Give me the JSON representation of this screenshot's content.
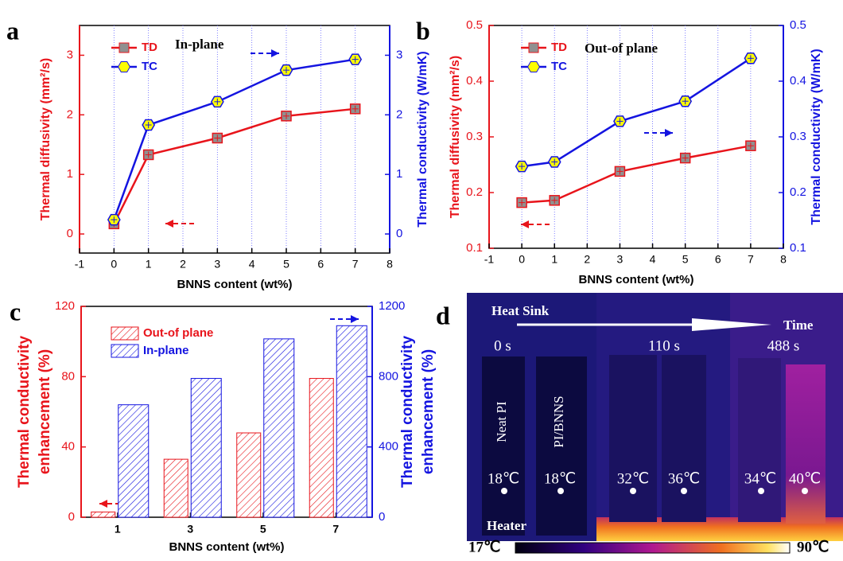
{
  "chart_data": [
    {
      "type": "line",
      "label": "a",
      "annotation": "In-plane",
      "xlabel": "BNNS content (wt%)",
      "ylabel": "Thermal diffusivity (mm²/s)",
      "y2label": "Thermal conductivity (W/mK)",
      "x": [
        0,
        1,
        3,
        5,
        7
      ],
      "xlim": [
        -1,
        8
      ],
      "xticks": [
        -1,
        0,
        1,
        2,
        3,
        4,
        5,
        6,
        7,
        8
      ],
      "ylim": [
        -0.32,
        3.5
      ],
      "yticks": [
        0,
        1,
        2,
        3
      ],
      "y2lim": [
        -0.32,
        3.5
      ],
      "y2ticks": [
        0,
        1,
        2,
        3
      ],
      "grid": true,
      "legend": "upper left",
      "series": [
        {
          "name": "TD",
          "color": "#e8141b",
          "values": [
            0.17,
            1.33,
            1.61,
            1.98,
            2.1
          ]
        },
        {
          "name": "TC",
          "color": "#1414e0",
          "axis": "y2",
          "values": [
            0.24,
            1.83,
            2.22,
            2.75,
            2.93
          ]
        }
      ]
    },
    {
      "type": "line",
      "label": "b",
      "annotation": "Out-of plane",
      "xlabel": "BNNS content (wt%)",
      "ylabel": "Thermal diffusivity (mm²/s)",
      "y2label": "Thermal conductivity (W/mK)",
      "x": [
        0,
        1,
        3,
        5,
        7
      ],
      "xlim": [
        -1,
        8
      ],
      "xticks": [
        -1,
        0,
        1,
        2,
        3,
        4,
        5,
        6,
        7,
        8
      ],
      "ylim": [
        0.1,
        0.5
      ],
      "yticks": [
        0.1,
        0.2,
        0.3,
        0.4,
        0.5
      ],
      "y2lim": [
        0.1,
        0.5
      ],
      "y2ticks": [
        0.1,
        0.2,
        0.3,
        0.4,
        0.5
      ],
      "grid": true,
      "legend": "upper left",
      "series": [
        {
          "name": "TD",
          "color": "#e8141b",
          "values": [
            0.182,
            0.186,
            0.238,
            0.262,
            0.284
          ]
        },
        {
          "name": "TC",
          "color": "#1414e0",
          "axis": "y2",
          "values": [
            0.247,
            0.255,
            0.328,
            0.364,
            0.441
          ]
        }
      ]
    },
    {
      "type": "bar",
      "label": "c",
      "xlabel": "BNNS content (wt%)",
      "ylabel": [
        "Thermal conductivity",
        "enhancement  (%)"
      ],
      "y2label": [
        "Thermal conductivity",
        "enhancement  (%)"
      ],
      "categories": [
        "1",
        "3",
        "5",
        "7"
      ],
      "ylim": [
        0,
        120
      ],
      "yticks": [
        0,
        40,
        80,
        120
      ],
      "y2lim": [
        0,
        1200
      ],
      "y2ticks": [
        0,
        400,
        800,
        1200
      ],
      "legend": "upper left",
      "series": [
        {
          "name": "Out-of plane",
          "color": "#e8141b",
          "values": [
            3,
            33,
            48,
            79
          ]
        },
        {
          "name": "In-plane",
          "color": "#1414e0",
          "axis": "y2",
          "values": [
            640,
            790,
            1015,
            1090
          ]
        }
      ]
    }
  ],
  "thermal_image": {
    "label": "d",
    "top": "Heat Sink",
    "arrow": "Time",
    "times": [
      "0 s",
      "110 s",
      "488 s"
    ],
    "samples": [
      "Neat PI",
      "PI/BNNS"
    ],
    "temperatures": [
      "18℃",
      "18℃",
      "32℃",
      "36℃",
      "34℃",
      "40℃"
    ],
    "bottom": "Heater",
    "scale": [
      "17℃",
      "90℃"
    ]
  }
}
